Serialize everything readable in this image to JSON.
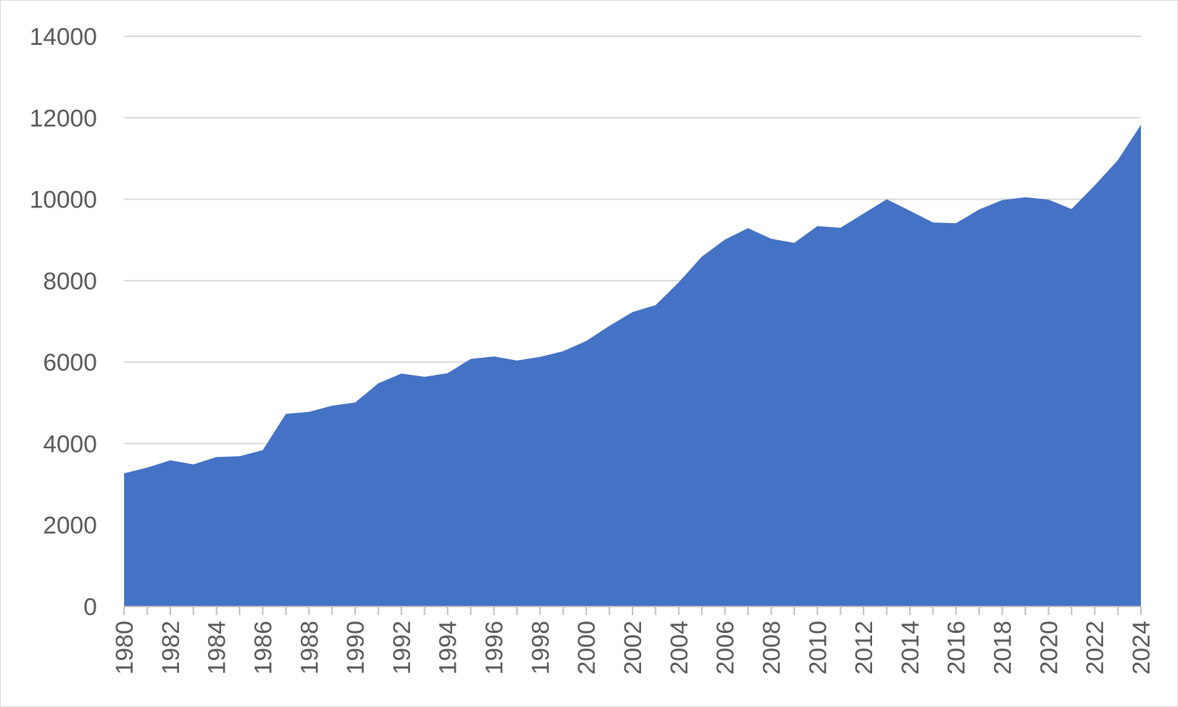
{
  "chart_data": {
    "type": "area",
    "title": "",
    "xlabel": "",
    "ylabel": "",
    "x": [
      1980,
      1981,
      1982,
      1983,
      1984,
      1985,
      1986,
      1987,
      1988,
      1989,
      1990,
      1991,
      1992,
      1993,
      1994,
      1995,
      1996,
      1997,
      1998,
      1999,
      2000,
      2001,
      2002,
      2003,
      2004,
      2005,
      2006,
      2007,
      2008,
      2009,
      2010,
      2011,
      2012,
      2013,
      2014,
      2015,
      2016,
      2017,
      2018,
      2019,
      2020,
      2021,
      2022,
      2023,
      2024
    ],
    "x_tick_labels": [
      "1980",
      "1982",
      "1984",
      "1986",
      "1988",
      "1990",
      "1992",
      "1994",
      "1996",
      "1998",
      "2000",
      "2002",
      "2004",
      "2006",
      "2008",
      "2010",
      "2012",
      "2014",
      "2016",
      "2018",
      "2020",
      "2022",
      "2024"
    ],
    "series": [
      {
        "values": [
          3270,
          3410,
          3590,
          3490,
          3670,
          3690,
          3840,
          4730,
          4780,
          4930,
          5010,
          5480,
          5720,
          5640,
          5730,
          6080,
          6140,
          6040,
          6130,
          6270,
          6520,
          6890,
          7230,
          7400,
          7960,
          8590,
          9010,
          9290,
          9030,
          8930,
          9340,
          9300,
          9650,
          10000,
          9720,
          9430,
          9410,
          9750,
          9980,
          10050,
          9990,
          9760,
          10340,
          10960,
          11830
        ]
      }
    ],
    "y_ticks": [
      0,
      2000,
      4000,
      6000,
      8000,
      10000,
      12000,
      14000
    ],
    "ylim": [
      0,
      14000
    ],
    "xlim": [
      1980,
      2024
    ],
    "grid": "horizontal",
    "legend": "none",
    "colors": {
      "fill": "#4472C4",
      "grid": "#d9d9d9",
      "axis": "#bfbfbf",
      "text": "#595959"
    }
  }
}
